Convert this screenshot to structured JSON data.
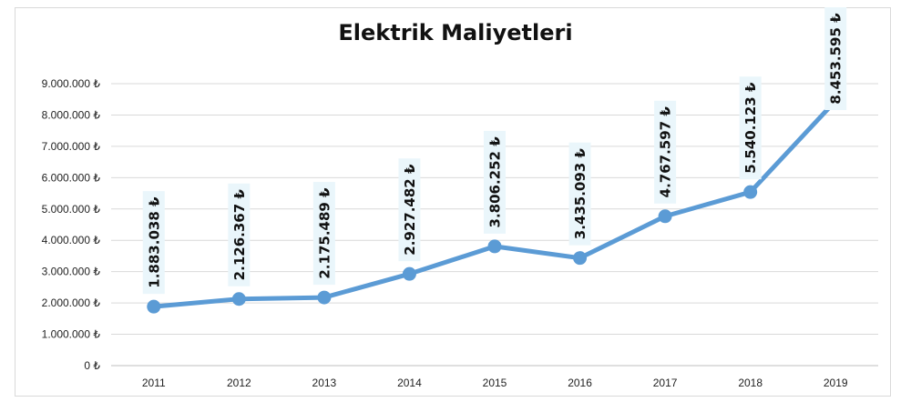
{
  "chart_data": {
    "type": "line",
    "title": "Elektrik Maliyetleri",
    "xlabel": "",
    "ylabel": "",
    "categories": [
      "2011",
      "2012",
      "2013",
      "2014",
      "2015",
      "2016",
      "2017",
      "2018",
      "2019"
    ],
    "series": [
      {
        "values": [
          1883038,
          2126367,
          2175489,
          2927482,
          3806252,
          3435093,
          4767597,
          5540123,
          8453595
        ],
        "color": "#5b9bd5"
      }
    ],
    "data_labels": [
      "1.883.038 ₺",
      "2.126.367 ₺",
      "2.175.489 ₺",
      "2.927.482 ₺",
      "3.806.252 ₺",
      "3.435.093 ₺",
      "4.767.597 ₺",
      "5.540.123 ₺",
      "8.453.595 ₺"
    ],
    "ylim": [
      0,
      9000000
    ],
    "y_ticks": [
      "0 ₺",
      "1.000.000 ₺",
      "2.000.000 ₺",
      "3.000.000 ₺",
      "4.000.000 ₺",
      "5.000.000 ₺",
      "6.000.000 ₺",
      "7.000.000 ₺",
      "8.000.000 ₺",
      "9.000.000 ₺"
    ],
    "grid": true,
    "legend": "none"
  }
}
